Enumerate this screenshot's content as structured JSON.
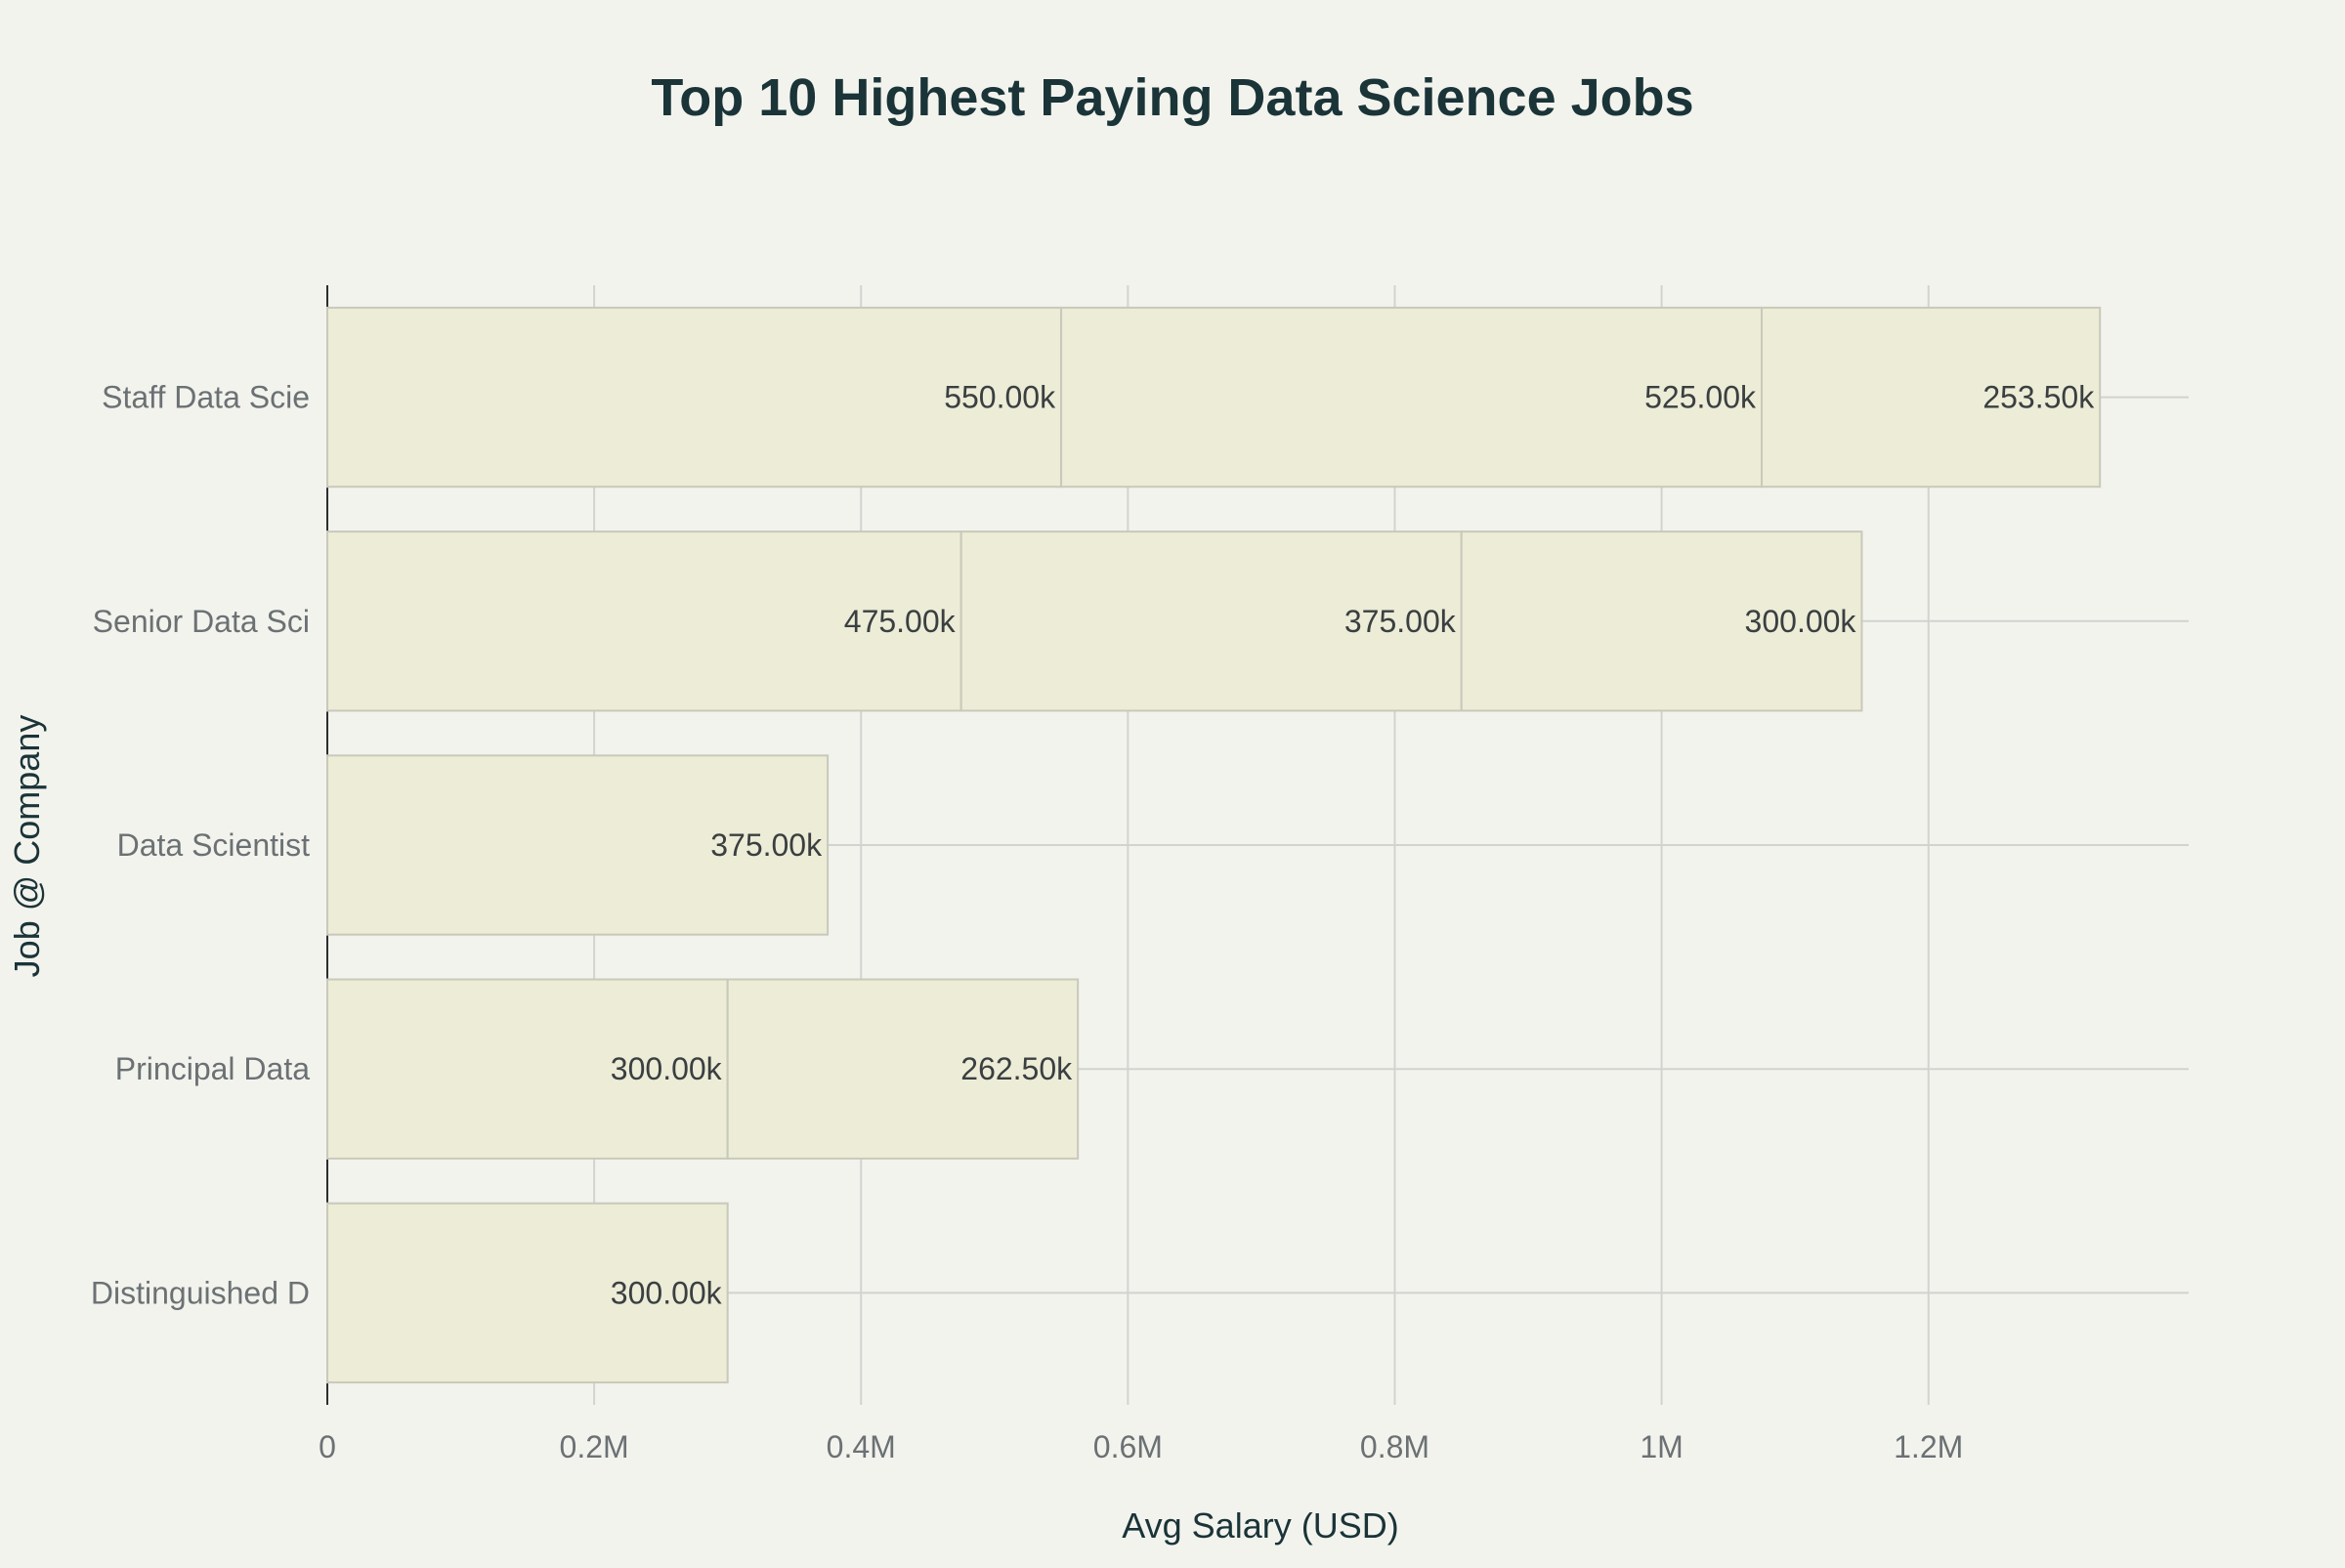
{
  "chart_data": {
    "type": "bar",
    "orientation": "horizontal",
    "barmode": "stack",
    "title": "Top 10 Highest Paying Data Science Jobs",
    "xlabel": "Avg Salary (USD)",
    "ylabel": "Job @ Company",
    "xlim": [
      0,
      1400000
    ],
    "xticks": [
      {
        "value": 0,
        "label": "0"
      },
      {
        "value": 200000,
        "label": "0.2M"
      },
      {
        "value": 400000,
        "label": "0.4M"
      },
      {
        "value": 600000,
        "label": "0.6M"
      },
      {
        "value": 800000,
        "label": "0.8M"
      },
      {
        "value": 1000000,
        "label": "1M"
      },
      {
        "value": 1200000,
        "label": "1.2M"
      }
    ],
    "grid": true,
    "bar_color": "#ececd7",
    "bar_edge_color": "#c9c9bb",
    "categories": [
      {
        "label": "Staff Data Scie",
        "segments": [
          {
            "value": 550000,
            "label": "550.00k"
          },
          {
            "value": 525000,
            "label": "525.00k"
          },
          {
            "value": 253500,
            "label": "253.50k"
          }
        ]
      },
      {
        "label": "Senior Data Sci",
        "segments": [
          {
            "value": 475000,
            "label": "475.00k"
          },
          {
            "value": 375000,
            "label": "375.00k"
          },
          {
            "value": 300000,
            "label": "300.00k"
          }
        ]
      },
      {
        "label": "Data Scientist",
        "segments": [
          {
            "value": 375000,
            "label": "375.00k"
          }
        ]
      },
      {
        "label": "Principal Data",
        "segments": [
          {
            "value": 300000,
            "label": "300.00k"
          },
          {
            "value": 262500,
            "label": "262.50k"
          }
        ]
      },
      {
        "label": "Distinguished D",
        "segments": [
          {
            "value": 300000,
            "label": "300.00k"
          }
        ]
      }
    ]
  }
}
